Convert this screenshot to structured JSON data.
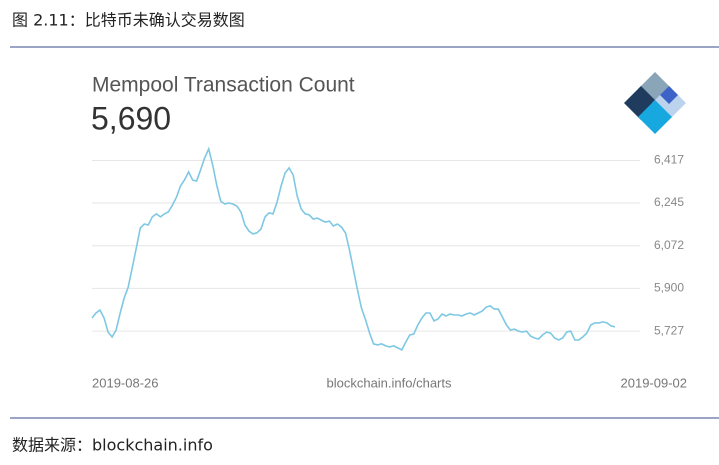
{
  "caption": "图 2.11：比特币未确认交易数图",
  "source": "数据来源：blockchain.info",
  "chart_data": {
    "type": "line",
    "title": "Mempool Transaction Count",
    "subtitle": "5,690",
    "color": "#7ec8e3",
    "grid": true,
    "x_labels": [
      "2019-08-26",
      "2019-09-02"
    ],
    "credit": "blockchain.info/charts",
    "ylim": [
      5610,
      6500
    ],
    "yticks": [
      {
        "value": 5727,
        "label": "5,727"
      },
      {
        "value": 5900,
        "label": "5,900"
      },
      {
        "value": 6072,
        "label": "6,072"
      },
      {
        "value": 6245,
        "label": "6,245"
      },
      {
        "value": 6417,
        "label": "6,417"
      }
    ],
    "values": [
      5780,
      5800,
      5812,
      5780,
      5723,
      5703,
      5731,
      5800,
      5861,
      5905,
      5982,
      6063,
      6144,
      6160,
      6156,
      6189,
      6201,
      6189,
      6201,
      6209,
      6237,
      6269,
      6314,
      6338,
      6371,
      6338,
      6334,
      6379,
      6427,
      6464,
      6399,
      6318,
      6253,
      6241,
      6245,
      6241,
      6233,
      6209,
      6156,
      6132,
      6120,
      6124,
      6140,
      6189,
      6205,
      6201,
      6249,
      6314,
      6367,
      6387,
      6358,
      6273,
      6221,
      6201,
      6197,
      6180,
      6184,
      6176,
      6168,
      6172,
      6152,
      6160,
      6148,
      6124,
      6055,
      5974,
      5893,
      5820,
      5772,
      5719,
      5675,
      5671,
      5675,
      5667,
      5663,
      5667,
      5659,
      5651,
      5683,
      5711,
      5715,
      5752,
      5780,
      5800,
      5800,
      5768,
      5776,
      5796,
      5788,
      5796,
      5792,
      5792,
      5788,
      5796,
      5800,
      5792,
      5800,
      5808,
      5824,
      5829,
      5816,
      5816,
      5784,
      5752,
      5731,
      5735,
      5727,
      5723,
      5727,
      5707,
      5699,
      5695,
      5711,
      5723,
      5719,
      5699,
      5691,
      5699,
      5723,
      5727,
      5691,
      5691,
      5703,
      5719,
      5752,
      5760,
      5760,
      5764,
      5760,
      5748,
      5744
    ]
  }
}
